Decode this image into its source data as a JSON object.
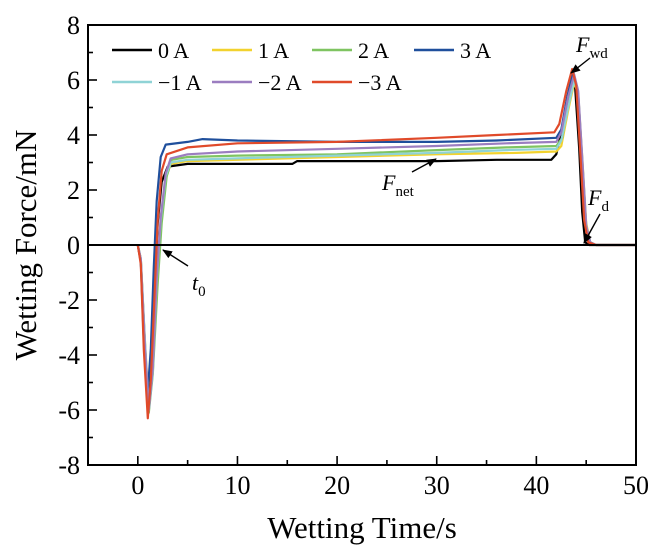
{
  "chart_data": {
    "type": "line",
    "xlabel": "Wetting Time/s",
    "ylabel": "Wetting Force/mN",
    "xlim": [
      -5,
      50
    ],
    "ylim": [
      -8,
      8
    ],
    "xticks": [
      0,
      10,
      20,
      30,
      40,
      50
    ],
    "yticks": [
      -8,
      -6,
      -4,
      -2,
      0,
      2,
      4,
      6,
      8
    ],
    "grid": false,
    "legend_position": "top-left",
    "reference_line_y": 0,
    "series": [
      {
        "name": "0 A",
        "color": "#000000",
        "x": [
          0,
          0.3,
          0.7,
          1.0,
          1.3,
          1.7,
          2.0,
          2.4,
          3.0,
          5,
          10,
          15.5,
          16,
          22,
          30,
          36,
          41.5,
          42,
          42.8,
          43.5,
          43.9,
          44.3,
          44.6,
          44.9,
          45.3,
          46,
          50
        ],
        "y": [
          0,
          -0.6,
          -3.5,
          -5.6,
          -4.5,
          -1.5,
          0.8,
          2.3,
          2.85,
          2.95,
          2.95,
          2.95,
          3.05,
          3.05,
          3.05,
          3.1,
          3.1,
          3.3,
          4.6,
          5.9,
          5.7,
          3.5,
          1.2,
          0.1,
          0,
          0,
          0
        ]
      },
      {
        "name": "1 A",
        "color": "#f2d22e",
        "x": [
          0,
          0.3,
          0.7,
          1.1,
          1.5,
          1.9,
          2.3,
          2.8,
          3.3,
          5,
          10,
          20,
          30,
          38,
          42,
          42.5,
          43.2,
          43.8,
          44.2,
          44.6,
          45,
          45.4,
          46,
          50
        ],
        "y": [
          0,
          -0.5,
          -3.4,
          -5.9,
          -4.6,
          -1.4,
          0.8,
          2.4,
          2.95,
          3.05,
          3.1,
          3.2,
          3.3,
          3.35,
          3.4,
          3.6,
          4.9,
          5.9,
          5.5,
          3.2,
          0.8,
          0.1,
          0,
          0
        ]
      },
      {
        "name": "2 A",
        "color": "#7fc461",
        "x": [
          0,
          0.3,
          0.7,
          1.1,
          1.5,
          2.0,
          2.4,
          2.9,
          3.4,
          5,
          10,
          20,
          30,
          37,
          42,
          42.6,
          43.2,
          43.8,
          44.2,
          44.6,
          45,
          45.4,
          46,
          50
        ],
        "y": [
          0,
          -0.5,
          -3.5,
          -6.1,
          -4.7,
          -1.4,
          0.8,
          2.5,
          3.1,
          3.2,
          3.25,
          3.3,
          3.45,
          3.55,
          3.6,
          3.9,
          5.2,
          6.1,
          5.5,
          3.1,
          0.7,
          0.1,
          0,
          0
        ]
      },
      {
        "name": "3 A",
        "color": "#1f4f9c",
        "x": [
          0,
          0.3,
          0.6,
          1.0,
          1.3,
          1.6,
          1.9,
          2.3,
          2.8,
          5,
          6.5,
          10,
          20,
          30,
          36,
          42,
          42.5,
          43.1,
          43.7,
          44.1,
          44.5,
          44.9,
          45.3,
          46,
          50
        ],
        "y": [
          0,
          -0.6,
          -3.5,
          -5.3,
          -3.8,
          -0.8,
          1.6,
          3.2,
          3.65,
          3.75,
          3.85,
          3.8,
          3.75,
          3.75,
          3.8,
          3.9,
          4.2,
          5.4,
          6.3,
          5.7,
          3.3,
          0.8,
          0.1,
          0,
          0
        ]
      },
      {
        "name": "−1 A",
        "color": "#8fd3d6",
        "x": [
          0,
          0.3,
          0.7,
          1.1,
          1.5,
          1.9,
          2.3,
          2.8,
          3.3,
          5,
          10,
          20,
          30,
          37,
          42,
          42.5,
          43.2,
          43.8,
          44.2,
          44.6,
          45,
          45.4,
          46,
          50
        ],
        "y": [
          0,
          -0.5,
          -3.4,
          -6.0,
          -4.6,
          -1.3,
          0.9,
          2.5,
          3.0,
          3.1,
          3.15,
          3.25,
          3.35,
          3.45,
          3.5,
          3.8,
          5.0,
          6.0,
          5.5,
          3.1,
          0.7,
          0.1,
          0,
          0
        ]
      },
      {
        "name": "−2 A",
        "color": "#9b7dc0",
        "x": [
          0,
          0.3,
          0.7,
          1.1,
          1.5,
          1.9,
          2.3,
          2.8,
          3.3,
          5,
          10,
          20,
          30,
          37,
          42,
          42.5,
          43.2,
          43.8,
          44.2,
          44.6,
          45,
          45.4,
          46,
          50
        ],
        "y": [
          0,
          -0.5,
          -3.6,
          -6.0,
          -4.5,
          -1.2,
          1.0,
          2.6,
          3.15,
          3.3,
          3.4,
          3.5,
          3.6,
          3.7,
          3.75,
          4.1,
          5.4,
          6.2,
          5.6,
          3.2,
          0.7,
          0.1,
          0,
          0
        ]
      },
      {
        "name": "−3 A",
        "color": "#e04a2a",
        "x": [
          0,
          0.3,
          0.6,
          1.0,
          1.3,
          1.7,
          2.0,
          2.4,
          2.9,
          5,
          10,
          20,
          30,
          36,
          41.8,
          42.3,
          43.0,
          43.6,
          44.0,
          44.4,
          44.8,
          45.2,
          46,
          50
        ],
        "y": [
          0,
          -0.7,
          -3.8,
          -6.3,
          -4.9,
          -1.6,
          0.9,
          2.7,
          3.3,
          3.55,
          3.7,
          3.75,
          3.9,
          4.0,
          4.1,
          4.4,
          5.6,
          6.4,
          5.8,
          3.4,
          0.9,
          0.1,
          0,
          0
        ]
      }
    ],
    "annotations": [
      {
        "id": "fwd",
        "main": "F",
        "sub": "wd",
        "x": 43.6,
        "y": 6.3
      },
      {
        "id": "fnet",
        "main": "F",
        "sub": "net",
        "x": 30,
        "y": 3.35
      },
      {
        "id": "fd",
        "main": "F",
        "sub": "d",
        "x": 44.9,
        "y": 0.05
      },
      {
        "id": "t0",
        "main": "t",
        "sub": "0",
        "x": 1.7,
        "y": -0.1
      }
    ]
  }
}
